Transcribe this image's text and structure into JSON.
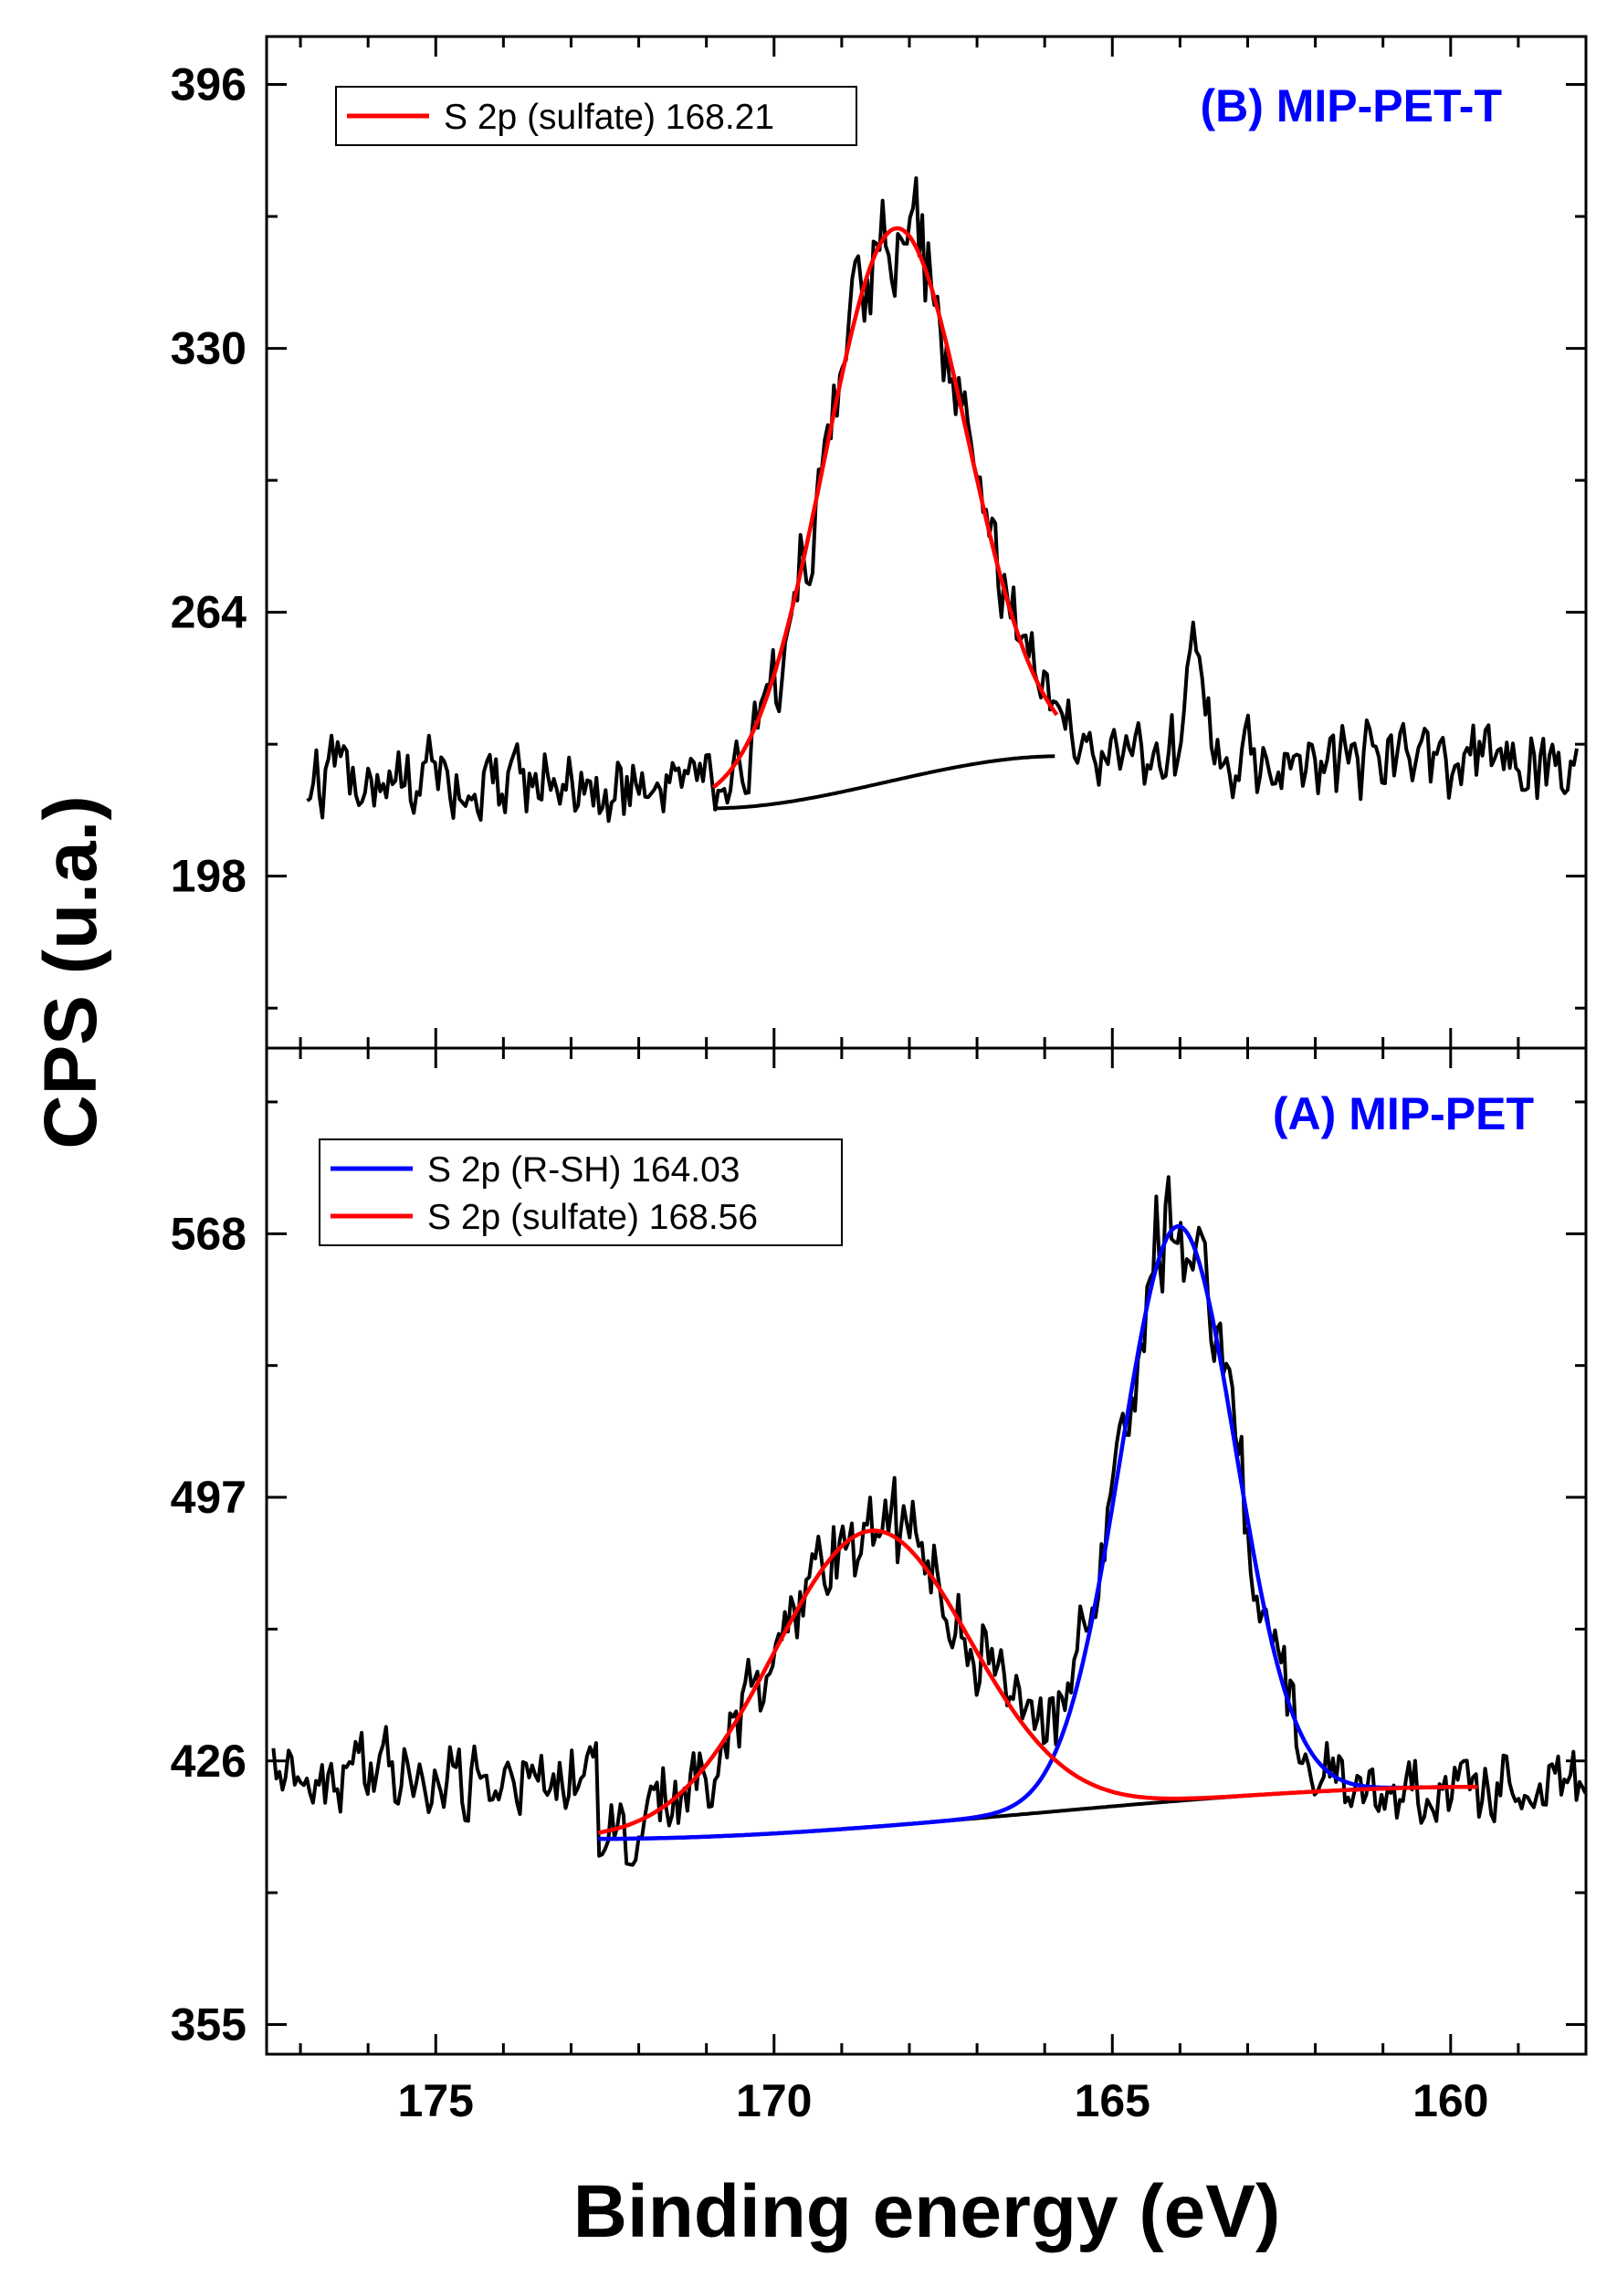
{
  "chart_data": {
    "type": "line",
    "xlabel": "Binding energy (eV)",
    "ylabel": "CPS (u.a.)",
    "xlim": [
      177.5,
      158.0
    ],
    "x_reversed": true,
    "xticks": [
      175,
      170,
      165,
      160
    ],
    "panels": [
      {
        "id": "B",
        "title": "(B) MIP-PET-T",
        "title_color": "#0000ff",
        "ylim": [
          155,
          408
        ],
        "yticks": [
          198,
          264,
          330,
          396
        ],
        "experimental": {
          "name": "experimental",
          "color": "#000000",
          "x_range": [
            176.9,
            158.1
          ],
          "background": 222,
          "noise": 11
        },
        "background_line": {
          "color": "#000000",
          "x_range": [
            170.9,
            165.8
          ],
          "start": 215,
          "end": 228
        },
        "series": [
          {
            "name": "S 2p (sulfate) 168.21",
            "color": "#ff0000",
            "center": 168.21,
            "peak": 360,
            "sigma": 1.05,
            "x_range": [
              170.9,
              165.8
            ]
          }
        ],
        "legend": [
          "S 2p (sulfate) 168.21"
        ]
      },
      {
        "id": "A",
        "title": "(A) MIP-PET",
        "title_color": "#0000ff",
        "ylim": [
          347,
          618
        ],
        "yticks": [
          355,
          426,
          497,
          568
        ],
        "experimental": {
          "name": "experimental",
          "color": "#000000",
          "x_range": [
            177.4,
            158.0
          ],
          "background": 425,
          "noise": 12
        },
        "background_line": {
          "color": "#000000",
          "x_range": [
            172.6,
            159.6
          ],
          "start": 405,
          "end": 419
        },
        "series": [
          {
            "name": "S 2p (R-SH) 164.03",
            "color": "#0000ff",
            "center": 164.03,
            "peak": 570,
            "sigma": 0.85,
            "x_range": [
              172.6,
              159.6
            ]
          },
          {
            "name": "S 2p (sulfate) 168.56",
            "color": "#ff0000",
            "center": 168.56,
            "peak": 488,
            "sigma": 1.45,
            "x_range": [
              172.6,
              159.6
            ]
          }
        ],
        "legend": [
          "S 2p (R-SH) 164.03",
          "S 2p (sulfate) 168.56"
        ]
      }
    ]
  }
}
